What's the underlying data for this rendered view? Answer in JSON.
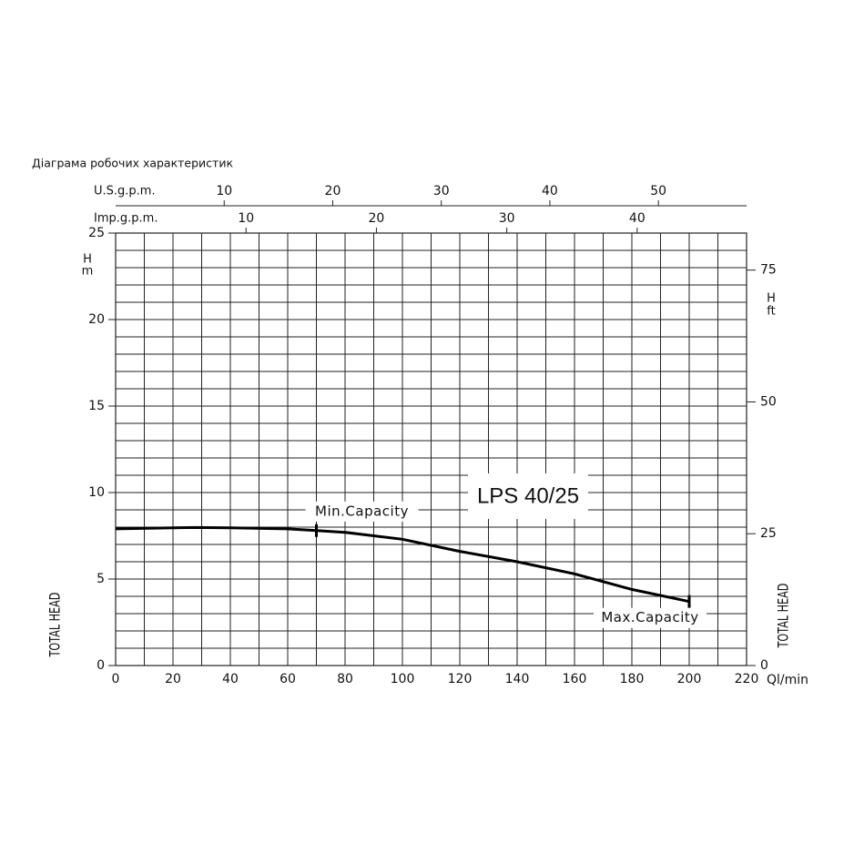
{
  "chart_data": {
    "type": "line",
    "title": "Діаграма робочих характеристик",
    "model_label": "LPS 40/25",
    "xlabel": "Ql/min",
    "ylabel": "H",
    "yunit": "m",
    "y2label": "H",
    "y2unit": "ft",
    "side_label": "TOTAL HEAD",
    "xlim": [
      0,
      220
    ],
    "xticks": [
      0,
      20,
      40,
      60,
      80,
      100,
      120,
      140,
      160,
      180,
      200,
      220
    ],
    "ylim": [
      0,
      25
    ],
    "yticks": [
      0,
      5,
      10,
      15,
      20,
      25
    ],
    "y2lim": [
      0,
      82.02
    ],
    "y2ticks": [
      0,
      25,
      50,
      75
    ],
    "xgrid": [
      0,
      10,
      20,
      30,
      40,
      50,
      60,
      70,
      80,
      90,
      100,
      110,
      120,
      130,
      140,
      150,
      160,
      170,
      180,
      190,
      200,
      210,
      220
    ],
    "ygrid": [
      0,
      1,
      2,
      3,
      4,
      5,
      6,
      7,
      8,
      9,
      10,
      11,
      12,
      13,
      14,
      15,
      16,
      17,
      18,
      19,
      20,
      21,
      22,
      23,
      24,
      25
    ],
    "top_axes": [
      {
        "label": "U.S.g.p.m.",
        "xlim": [
          0,
          58.12
        ],
        "xticks": [
          10,
          20,
          30,
          40,
          50
        ]
      },
      {
        "label": "Imp.g.p.m.",
        "xlim": [
          0,
          48.39
        ],
        "xticks": [
          10,
          20,
          30,
          40
        ]
      }
    ],
    "series": [
      {
        "name": "LPS 40/25",
        "color": "#000000",
        "x": [
          0,
          20,
          28,
          40,
          60,
          70,
          80,
          100,
          120,
          140,
          160,
          180,
          200
        ],
        "values": [
          7.9,
          7.96,
          7.98,
          7.96,
          7.9,
          7.8,
          7.7,
          7.3,
          6.6,
          6.0,
          5.3,
          4.4,
          3.7
        ]
      }
    ],
    "annotations": [
      {
        "text": "Min.Capacity",
        "x": 70,
        "y": 7.8
      },
      {
        "text": "Max.Capacity",
        "x": 200,
        "y": 3.7
      }
    ]
  }
}
